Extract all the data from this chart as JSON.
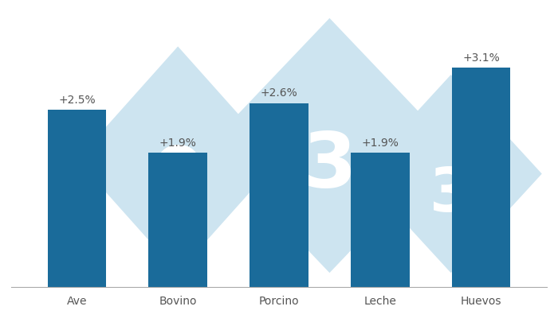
{
  "categories": [
    "Ave",
    "Bovino",
    "Porcino",
    "Leche",
    "Huevos"
  ],
  "values": [
    2.5,
    1.9,
    2.6,
    1.9,
    3.1
  ],
  "labels": [
    "+2.5%",
    "+1.9%",
    "+2.6%",
    "+1.9%",
    "+3.1%"
  ],
  "bar_color": "#1a6b9a",
  "background_color": "#ffffff",
  "label_color": "#555555",
  "label_fontsize": 10,
  "xlabel_fontsize": 10,
  "bar_width": 0.58,
  "ylim": [
    0,
    3.9
  ],
  "watermark_color": "#cde4f0",
  "watermark_text_color": "#b8d8ec"
}
